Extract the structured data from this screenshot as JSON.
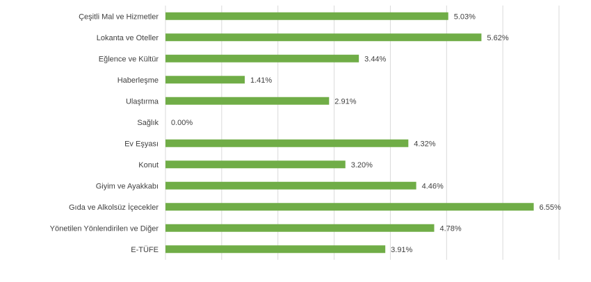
{
  "chart_data": {
    "type": "bar",
    "orientation": "horizontal",
    "categories": [
      "Çeşitli Mal ve Hizmetler",
      "Lokanta ve Oteller",
      "Eğlence ve Kültür",
      "Haberleşme",
      "Ulaştırma",
      "Sağlık",
      "Ev Eşyası",
      "Konut",
      "Giyim ve Ayakkabı",
      "Gıda ve Alkolsüz İçecekler",
      "Yönetilen Yönlendirilen ve Diğer",
      "E-TÜFE"
    ],
    "values": [
      5.03,
      5.62,
      3.44,
      1.41,
      2.91,
      0.0,
      4.32,
      3.2,
      4.46,
      6.55,
      4.78,
      3.91
    ],
    "value_labels": [
      "5.03%",
      "5.62%",
      "3.44%",
      "1.41%",
      "2.91%",
      "0.00%",
      "4.32%",
      "3.20%",
      "4.46%",
      "6.55%",
      "4.78%",
      "3.91%"
    ],
    "xlim": [
      0,
      7
    ],
    "grid": true,
    "bar_color": "#70ad47"
  }
}
